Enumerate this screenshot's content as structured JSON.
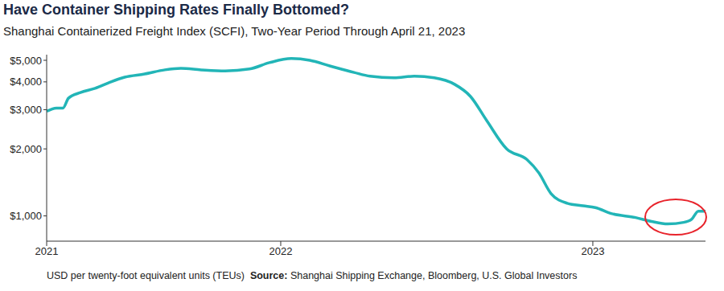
{
  "chart_data": {
    "type": "line",
    "title": "Have Container Shipping Rates Finally Bottomed?",
    "subtitle": "Shanghai Containerized Freight Index (SCFI), Two-Year Period Through April 21, 2023",
    "note": "USD per twenty-foot equivalent units (TEUs)",
    "source_label": "Source:",
    "source": "Shanghai Shipping Exchange, Bloomberg, U.S. Global Investors",
    "x": [
      2021.25,
      2021.281,
      2021.302,
      2021.32,
      2021.358,
      2021.405,
      2021.448,
      2021.5,
      2021.564,
      2021.629,
      2021.68,
      2021.745,
      2021.822,
      2021.9,
      2021.964,
      2022.034,
      2022.093,
      2022.157,
      2022.235,
      2022.286,
      2022.363,
      2022.428,
      2022.492,
      2022.557,
      2022.608,
      2022.66,
      2022.724,
      2022.789,
      2022.827,
      2022.866,
      2022.918,
      2022.969,
      2023.008,
      2023.059,
      2023.137,
      2023.188,
      2023.24,
      2023.291,
      2023.317,
      2023.338,
      2023.361
    ],
    "series": [
      {
        "name": "SCFI",
        "color": "#22b5b7",
        "values": [
          2950,
          3050,
          3050,
          3380,
          3580,
          3740,
          3960,
          4200,
          4340,
          4530,
          4600,
          4530,
          4480,
          4570,
          4880,
          5090,
          5000,
          4720,
          4410,
          4240,
          4170,
          4240,
          4170,
          3900,
          3440,
          2680,
          2000,
          1790,
          1560,
          1260,
          1140,
          1110,
          1090,
          1025,
          983,
          944,
          920,
          935,
          967,
          1050,
          1050
        ]
      }
    ],
    "xlim": [
      2021.25,
      2023.361
    ],
    "xticks": [
      {
        "value": 2021.25,
        "label": "2021"
      },
      2022,
      2023
    ],
    "ylim": [
      770,
      5300
    ],
    "yticks": [
      {
        "value": 1000,
        "label": "$1,000"
      },
      {
        "value": 2000,
        "label": "$2,000"
      },
      {
        "value": 3000,
        "label": "$3,000"
      },
      {
        "value": 4000,
        "label": "$4,000"
      },
      {
        "value": 5000,
        "label": "$5,000"
      }
    ],
    "log": "y",
    "grid": false
  }
}
